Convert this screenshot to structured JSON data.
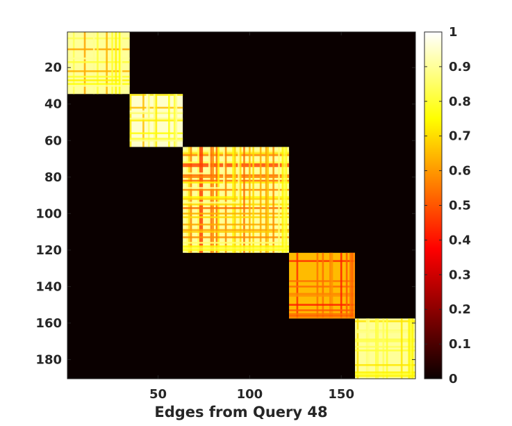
{
  "chart_data": {
    "type": "heatmap",
    "title": "",
    "xlabel": "Edges from Query 48",
    "ylabel": "",
    "n": 190,
    "xlim": [
      0.5,
      190.5
    ],
    "ylim": [
      0.5,
      190.5
    ],
    "y_direction": "top-to-bottom",
    "x_ticks": [
      50,
      100,
      150
    ],
    "y_ticks": [
      20,
      40,
      60,
      80,
      100,
      120,
      140,
      160,
      180
    ],
    "colormap": "hot",
    "colorbar": {
      "range": [
        0,
        1
      ],
      "ticks": [
        "0",
        "0.1",
        "0.2",
        "0.3",
        "0.4",
        "0.5",
        "0.6",
        "0.7",
        "0.8",
        "0.9",
        "1"
      ]
    },
    "background_value": 0,
    "blocks": [
      {
        "start": 1,
        "end": 34,
        "typical_value": 0.9,
        "min_value": 0.6
      },
      {
        "start": 35,
        "end": 63,
        "typical_value": 0.95,
        "min_value": 0.65
      },
      {
        "start": 64,
        "end": 121,
        "typical_value": 0.9,
        "min_value": 0.45
      },
      {
        "start": 122,
        "end": 157,
        "typical_value": 0.65,
        "min_value": 0.35
      },
      {
        "start": 158,
        "end": 190,
        "typical_value": 0.9,
        "min_value": 0.65
      }
    ]
  }
}
